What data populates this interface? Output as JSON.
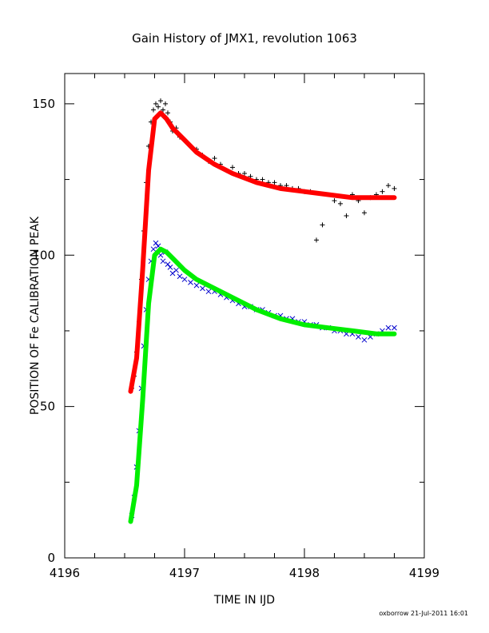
{
  "chart_data": {
    "type": "scatter",
    "title": "Gain History of JMX1, revolution 1063",
    "xlabel": "TIME IN IJD",
    "ylabel": "POSITION OF Fe CALIBRATION PEAK",
    "xlim": [
      4196,
      4199
    ],
    "ylim": [
      0,
      160
    ],
    "x_ticks": [
      4196,
      4197,
      4198,
      4199
    ],
    "y_ticks": [
      0,
      50,
      100,
      150
    ],
    "grid": false,
    "series": [
      {
        "marker": "plus",
        "color": "#000000",
        "x": [
          4196.56,
          4196.58,
          4196.6,
          4196.62,
          4196.64,
          4196.66,
          4196.68,
          4196.7,
          4196.72,
          4196.74,
          4196.76,
          4196.78,
          4196.8,
          4196.82,
          4196.84,
          4196.86,
          4196.88,
          4196.9,
          4196.93,
          4196.96,
          4197.0,
          4197.05,
          4197.1,
          4197.15,
          4197.2,
          4197.25,
          4197.3,
          4197.35,
          4197.4,
          4197.45,
          4197.5,
          4197.55,
          4197.6,
          4197.65,
          4197.7,
          4197.75,
          4197.8,
          4197.85,
          4197.9,
          4197.95,
          4198.0,
          4198.05,
          4198.1,
          4198.15,
          4198.2,
          4198.25,
          4198.3,
          4198.35,
          4198.4,
          4198.45,
          4198.5,
          4198.55,
          4198.6,
          4198.65,
          4198.7,
          4198.75
        ],
        "y": [
          56,
          60,
          68,
          78,
          92,
          108,
          124,
          136,
          144,
          148,
          150,
          149,
          151,
          148,
          150,
          147,
          144,
          141,
          142,
          139,
          138,
          136,
          135,
          133,
          131,
          132,
          130,
          128,
          129,
          127,
          127,
          126,
          125,
          125,
          124,
          124,
          123,
          123,
          122,
          122,
          121,
          121,
          105,
          110,
          120,
          118,
          117,
          113,
          120,
          118,
          114,
          119,
          120,
          121,
          123,
          122
        ]
      },
      {
        "marker": "cross",
        "color": "#0000cc",
        "x": [
          4196.56,
          4196.58,
          4196.6,
          4196.62,
          4196.64,
          4196.66,
          4196.68,
          4196.7,
          4196.72,
          4196.74,
          4196.76,
          4196.78,
          4196.8,
          4196.82,
          4196.84,
          4196.86,
          4196.88,
          4196.9,
          4196.93,
          4196.96,
          4197.0,
          4197.05,
          4197.1,
          4197.15,
          4197.2,
          4197.25,
          4197.3,
          4197.35,
          4197.4,
          4197.45,
          4197.5,
          4197.55,
          4197.6,
          4197.65,
          4197.7,
          4197.75,
          4197.8,
          4197.85,
          4197.9,
          4197.95,
          4198.0,
          4198.05,
          4198.1,
          4198.15,
          4198.2,
          4198.25,
          4198.3,
          4198.35,
          4198.4,
          4198.45,
          4198.5,
          4198.55,
          4198.6,
          4198.65,
          4198.7,
          4198.75
        ],
        "y": [
          14,
          20,
          30,
          42,
          56,
          70,
          82,
          92,
          98,
          102,
          104,
          103,
          100,
          98,
          101,
          97,
          96,
          94,
          95,
          93,
          92,
          91,
          90,
          89,
          88,
          88,
          87,
          86,
          85,
          84,
          83,
          83,
          82,
          82,
          81,
          80,
          80,
          79,
          79,
          78,
          78,
          77,
          77,
          76,
          76,
          75,
          75,
          74,
          74,
          73,
          72,
          73,
          74,
          75,
          76,
          76
        ]
      },
      {
        "marker": "line",
        "color": "#ff0000",
        "x": [
          4196.55,
          4196.6,
          4196.65,
          4196.7,
          4196.75,
          4196.8,
          4196.85,
          4196.9,
          4197.0,
          4197.1,
          4197.25,
          4197.4,
          4197.6,
          4197.8,
          4198.0,
          4198.2,
          4198.4,
          4198.6,
          4198.75
        ],
        "y": [
          55,
          66,
          95,
          128,
          145,
          147,
          145,
          142,
          138,
          134,
          130,
          127,
          124,
          122,
          121,
          120,
          119,
          119,
          119
        ]
      },
      {
        "marker": "line",
        "color": "#00ee00",
        "x": [
          4196.55,
          4196.6,
          4196.65,
          4196.7,
          4196.75,
          4196.8,
          4196.85,
          4196.9,
          4197.0,
          4197.1,
          4197.25,
          4197.4,
          4197.6,
          4197.8,
          4198.0,
          4198.2,
          4198.4,
          4198.6,
          4198.75
        ],
        "y": [
          12,
          24,
          52,
          84,
          100,
          102,
          101,
          99,
          95,
          92,
          89,
          86,
          82,
          79,
          77,
          76,
          75,
          74,
          74
        ]
      }
    ]
  },
  "footer": "oxborrow 21-Jul-2011 16:01"
}
